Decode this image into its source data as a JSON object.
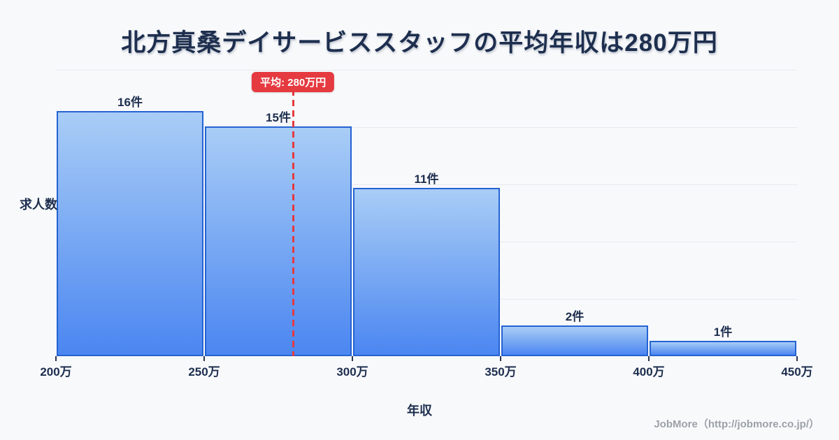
{
  "title": {
    "text": "北方真桑デイサービススタッフの平均年収は280万円"
  },
  "chart_data": {
    "type": "bar",
    "title": "北方真桑デイサービススタッフの平均年収は280万円",
    "values": [
      16,
      15,
      11,
      2,
      1
    ],
    "bar_labels": [
      "16件",
      "15件",
      "11件",
      "2件",
      "1件"
    ],
    "bin_edges": [
      200,
      250,
      300,
      350,
      400,
      450
    ],
    "tick_labels": [
      "200万",
      "250万",
      "300万",
      "350万",
      "400万",
      "450万"
    ],
    "xlabel": "年収",
    "ylabel": "求人数",
    "x_range": [
      200,
      450
    ],
    "ylim": [
      0,
      18.7
    ],
    "grid": {
      "horizontal_lines": 5
    },
    "legend": "none",
    "mean": {
      "value": 280,
      "label": "平均: 280万円"
    }
  },
  "colors": {
    "background": "#f8f9fb",
    "text_dark": "#1d2e4e",
    "gridline": "#e6e9ef",
    "bar_border": "#2563d2",
    "bar_fill_top": "#a9cdf6",
    "bar_fill_bottom": "#4b86f1",
    "mean_red": "#e53a40",
    "footer_gray": "#9ca1a8"
  },
  "footer": {
    "text": "JobMore（http://jobmore.co.jp/）"
  }
}
